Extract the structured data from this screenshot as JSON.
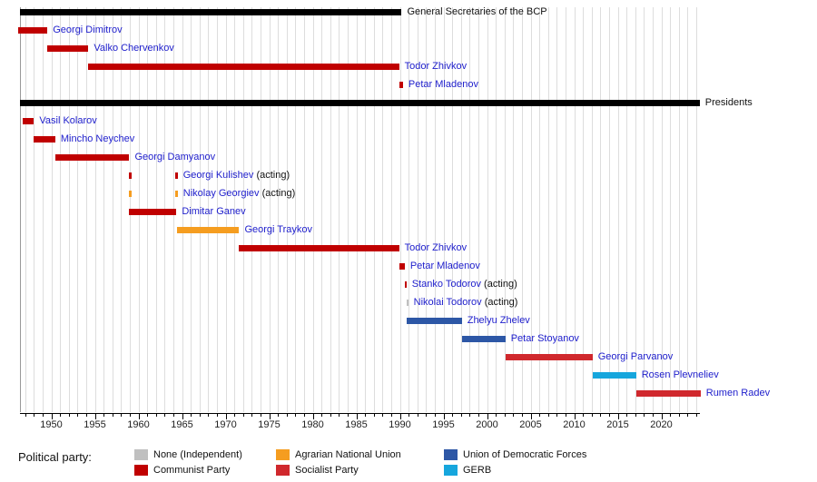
{
  "chart_data": {
    "type": "timeline",
    "title": "",
    "x_axis": {
      "min": 1946.4,
      "max": 2024.4,
      "major_ticks": [
        1950,
        1955,
        1960,
        1965,
        1970,
        1975,
        1980,
        1985,
        1990,
        1995,
        2000,
        2005,
        2010,
        2015,
        2020
      ],
      "minor_step": 1,
      "grid": true
    },
    "sections": [
      {
        "label": "General Secretaries of the BCP",
        "start": 1946.4,
        "end": 1990.2,
        "entries": [
          {
            "name": "Georgi Dimitrov",
            "party": "communist",
            "terms": [
              [
                1946.2,
                1949.55
              ]
            ]
          },
          {
            "name": "Valko Chervenkov",
            "party": "communist",
            "terms": [
              [
                1949.55,
                1954.25
              ]
            ]
          },
          {
            "name": "Todor Zhivkov",
            "party": "communist",
            "terms": [
              [
                1954.25,
                1989.9
              ]
            ]
          },
          {
            "name": "Petar Mladenov",
            "party": "communist",
            "terms": [
              [
                1989.9,
                1990.35
              ]
            ]
          }
        ]
      },
      {
        "label": "Presidents",
        "start": 1946.4,
        "end": 2024.4,
        "entries": [
          {
            "name": "Vasil Kolarov",
            "party": "communist",
            "terms": [
              [
                1946.7,
                1948.0
              ]
            ]
          },
          {
            "name": "Mincho Neychev",
            "party": "communist",
            "terms": [
              [
                1948.0,
                1950.45
              ]
            ]
          },
          {
            "name": "Georgi Damyanov",
            "party": "communist",
            "terms": [
              [
                1950.45,
                1958.95
              ]
            ]
          },
          {
            "name": "Georgi Kulishev",
            "suffix": " (acting)",
            "party": "communist",
            "terms": [
              [
                1958.95,
                1959.2
              ],
              [
                1964.25,
                1964.5
              ]
            ]
          },
          {
            "name": "Nikolay Georgiev",
            "suffix": " (acting)",
            "party": "agrarian",
            "terms": [
              [
                1958.95,
                1959.2
              ],
              [
                1964.25,
                1964.5
              ]
            ]
          },
          {
            "name": "Dimitar Ganev",
            "party": "communist",
            "terms": [
              [
                1958.95,
                1964.35
              ]
            ]
          },
          {
            "name": "Georgi Traykov",
            "party": "agrarian",
            "terms": [
              [
                1964.4,
                1971.55
              ]
            ]
          },
          {
            "name": "Todor Zhivkov",
            "party": "communist",
            "terms": [
              [
                1971.55,
                1989.9
              ]
            ]
          },
          {
            "name": "Petar Mladenov",
            "party": "communist",
            "terms": [
              [
                1989.9,
                1990.55
              ]
            ]
          },
          {
            "name": "Stanko Todorov",
            "suffix": " (acting)",
            "party": "communist",
            "terms": [
              [
                1990.55,
                1990.75
              ]
            ]
          },
          {
            "name": "Nikolai Todorov",
            "suffix": " (acting)",
            "party": "none",
            "terms": [
              [
                1990.75,
                1990.95
              ]
            ]
          },
          {
            "name": "Zhelyu Zhelev",
            "party": "udf",
            "terms": [
              [
                1990.8,
                1997.1
              ]
            ]
          },
          {
            "name": "Petar Stoyanov",
            "party": "udf",
            "terms": [
              [
                1997.1,
                2002.1
              ]
            ]
          },
          {
            "name": "Georgi Parvanov",
            "party": "socialist",
            "terms": [
              [
                2002.1,
                2012.1
              ]
            ]
          },
          {
            "name": "Rosen Plevneliev",
            "party": "gerb",
            "terms": [
              [
                2012.1,
                2017.1
              ]
            ]
          },
          {
            "name": "Rumen Radev",
            "party": "socialist",
            "terms": [
              [
                2017.1,
                2024.5
              ]
            ]
          }
        ]
      }
    ]
  },
  "party_colors": {
    "none": "#c0c0c0",
    "communist": "#c00000",
    "agrarian": "#f59d20",
    "socialist": "#d0282d",
    "udf": "#2d57a6",
    "gerb": "#16a6dd"
  },
  "legend": {
    "label": "Political party:",
    "items": [
      {
        "name": "None (Independent)",
        "key": "none"
      },
      {
        "name": "Communist Party",
        "key": "communist"
      },
      {
        "name": "Agrarian National Union",
        "key": "agrarian"
      },
      {
        "name": "Socialist Party",
        "key": "socialist"
      },
      {
        "name": "Union of Democratic Forces",
        "key": "udf"
      },
      {
        "name": "GERB",
        "key": "gerb"
      }
    ]
  }
}
